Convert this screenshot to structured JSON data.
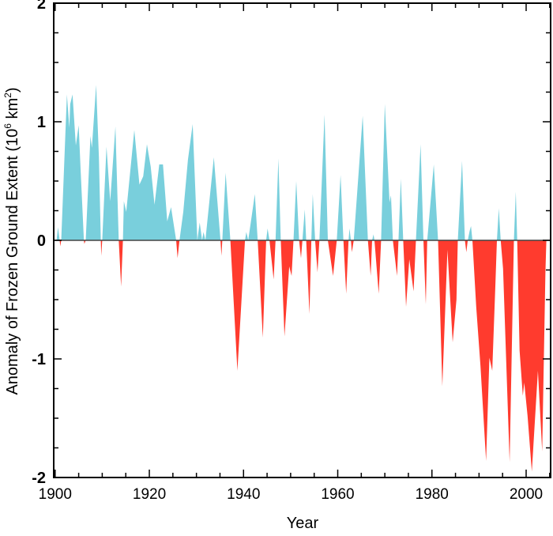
{
  "chart_data": {
    "type": "area",
    "title": "",
    "xlabel": "Year",
    "ylabel": "Anomaly of Frozen Ground Extent (10",
    "ylabel_sup1": "6",
    "ylabel_mid": " km",
    "ylabel_sup2": "2",
    "ylabel_end": ")",
    "xlim": [
      1899.7,
      2005.2
    ],
    "ylim": [
      -2,
      2
    ],
    "x_ticks": [
      1900,
      1920,
      1940,
      1960,
      1980,
      2000
    ],
    "x_tick_labels": [
      "1900",
      "1920",
      "1940",
      "1960",
      "1980",
      "2000"
    ],
    "y_ticks": [
      -2,
      -1,
      0,
      1,
      2
    ],
    "y_tick_labels": [
      "-2",
      "-1",
      "0",
      "1",
      "2"
    ],
    "grid": false,
    "colors": {
      "positive": "#79cfdc",
      "negative": "#ff3b2e",
      "zero_line": "#444444"
    },
    "series": [
      {
        "points": [
          [
            1900.3,
            0
          ],
          [
            1900.6,
            0.11
          ],
          [
            1900.9,
            0.02
          ],
          [
            1901.1,
            -0.05
          ],
          [
            1901.3,
            0
          ],
          [
            1902.5,
            1.23
          ],
          [
            1903.0,
            0.95
          ],
          [
            1903.2,
            1.15
          ],
          [
            1903.7,
            1.23
          ],
          [
            1904.4,
            0.8
          ],
          [
            1905.0,
            0.97
          ],
          [
            1905.4,
            0.6
          ],
          [
            1906.1,
            0
          ],
          [
            1906.2,
            -0.03
          ],
          [
            1906.5,
            0
          ],
          [
            1907.5,
            0.88
          ],
          [
            1907.8,
            0.78
          ],
          [
            1908.7,
            1.31
          ],
          [
            1909.3,
            0.7
          ],
          [
            1909.7,
            0
          ],
          [
            1909.8,
            -0.13
          ],
          [
            1910.0,
            0
          ],
          [
            1910.9,
            0.79
          ],
          [
            1911.7,
            0.33
          ],
          [
            1912.8,
            0.96
          ],
          [
            1913.5,
            0
          ],
          [
            1914.0,
            -0.39
          ],
          [
            1914.4,
            0
          ],
          [
            1914.6,
            0.33
          ],
          [
            1915.1,
            0.24
          ],
          [
            1916.8,
            0.93
          ],
          [
            1917.9,
            0.47
          ],
          [
            1918.7,
            0.54
          ],
          [
            1919.5,
            0.81
          ],
          [
            1920.3,
            0.62
          ],
          [
            1921.1,
            0.3
          ],
          [
            1922.1,
            0.64
          ],
          [
            1922.9,
            0.64
          ],
          [
            1923.8,
            0.16
          ],
          [
            1924.6,
            0.28
          ],
          [
            1925.7,
            0
          ],
          [
            1926.0,
            -0.15
          ],
          [
            1926.4,
            0
          ],
          [
            1927.2,
            0.24
          ],
          [
            1928.2,
            0.68
          ],
          [
            1929.2,
            0.98
          ],
          [
            1930.2,
            0
          ],
          [
            1930.7,
            0.15
          ],
          [
            1931.2,
            0
          ],
          [
            1931.5,
            0.07
          ],
          [
            1931.9,
            0
          ],
          [
            1933.7,
            0.7
          ],
          [
            1935.1,
            0
          ],
          [
            1935.3,
            -0.13
          ],
          [
            1935.5,
            0
          ],
          [
            1936.2,
            0.57
          ],
          [
            1937.2,
            0
          ],
          [
            1938.7,
            -1.1
          ],
          [
            1940.3,
            0
          ],
          [
            1940.6,
            0.07
          ],
          [
            1941.0,
            0
          ],
          [
            1942.4,
            0.39
          ],
          [
            1943.0,
            0
          ],
          [
            1944.1,
            -0.82
          ],
          [
            1944.8,
            0
          ],
          [
            1945.1,
            0.1
          ],
          [
            1945.5,
            0
          ],
          [
            1946.4,
            -0.33
          ],
          [
            1946.8,
            0
          ],
          [
            1947.4,
            0.69
          ],
          [
            1947.9,
            0
          ],
          [
            1948.7,
            -0.81
          ],
          [
            1949.7,
            -0.22
          ],
          [
            1950.2,
            -0.3
          ],
          [
            1950.6,
            0
          ],
          [
            1951.2,
            0.5
          ],
          [
            1951.8,
            0
          ],
          [
            1952.2,
            -0.15
          ],
          [
            1952.5,
            0
          ],
          [
            1953.0,
            0.26
          ],
          [
            1953.3,
            0
          ],
          [
            1954.0,
            -0.62
          ],
          [
            1954.4,
            0
          ],
          [
            1954.7,
            0.39
          ],
          [
            1955.2,
            0
          ],
          [
            1955.7,
            -0.27
          ],
          [
            1956.1,
            0
          ],
          [
            1957.2,
            1.06
          ],
          [
            1957.9,
            0
          ],
          [
            1959.0,
            -0.3
          ],
          [
            1959.8,
            0
          ],
          [
            1960.6,
            0.55
          ],
          [
            1961.2,
            0
          ],
          [
            1961.8,
            -0.45
          ],
          [
            1962.3,
            0
          ],
          [
            1962.5,
            0.1
          ],
          [
            1962.8,
            0
          ],
          [
            1963.0,
            -0.1
          ],
          [
            1963.4,
            0
          ],
          [
            1965.3,
            1.05
          ],
          [
            1966.4,
            0
          ],
          [
            1967.0,
            -0.3
          ],
          [
            1967.3,
            0
          ],
          [
            1967.6,
            0.05
          ],
          [
            1967.8,
            0
          ],
          [
            1968.7,
            -0.45
          ],
          [
            1969.2,
            0
          ],
          [
            1970.0,
            1.15
          ],
          [
            1971.0,
            0.32
          ],
          [
            1971.3,
            0.38
          ],
          [
            1971.7,
            0
          ],
          [
            1972.6,
            -0.3
          ],
          [
            1972.9,
            0
          ],
          [
            1973.4,
            0.52
          ],
          [
            1973.9,
            0
          ],
          [
            1974.5,
            -0.56
          ],
          [
            1975.2,
            -0.16
          ],
          [
            1976.1,
            -0.43
          ],
          [
            1976.6,
            0
          ],
          [
            1977.6,
            0.81
          ],
          [
            1978.2,
            0
          ],
          [
            1978.7,
            -0.54
          ],
          [
            1979.0,
            0
          ],
          [
            1980.4,
            0.64
          ],
          [
            1981.3,
            0
          ],
          [
            1982.2,
            -1.23
          ],
          [
            1983.3,
            -0.08
          ],
          [
            1984.4,
            -0.86
          ],
          [
            1985.2,
            -0.5
          ],
          [
            1985.5,
            0
          ],
          [
            1986.4,
            0.67
          ],
          [
            1987.0,
            0
          ],
          [
            1987.3,
            -0.1
          ],
          [
            1987.6,
            0
          ],
          [
            1988.0,
            0.08
          ],
          [
            1988.3,
            0.12
          ],
          [
            1988.6,
            0
          ],
          [
            1989.4,
            -0.56
          ],
          [
            1990.3,
            -1.06
          ],
          [
            1991.5,
            -1.86
          ],
          [
            1992.2,
            -0.99
          ],
          [
            1992.8,
            -1.1
          ],
          [
            1993.5,
            -0.35
          ],
          [
            1993.8,
            0
          ],
          [
            1994.2,
            0.27
          ],
          [
            1994.6,
            0
          ],
          [
            1995.1,
            -0.24
          ],
          [
            1996.5,
            -1.87
          ],
          [
            1997.4,
            0
          ],
          [
            1997.8,
            0.41
          ],
          [
            1998.1,
            0
          ],
          [
            1998.6,
            -0.93
          ],
          [
            1999.3,
            -1.31
          ],
          [
            1999.6,
            -1.2
          ],
          [
            2000.3,
            -1.48
          ],
          [
            2001.2,
            -1.95
          ],
          [
            2002.5,
            -1.1
          ],
          [
            2003.4,
            -1.78
          ],
          [
            2004.1,
            -0.27
          ],
          [
            2004.3,
            0
          ]
        ]
      }
    ]
  }
}
